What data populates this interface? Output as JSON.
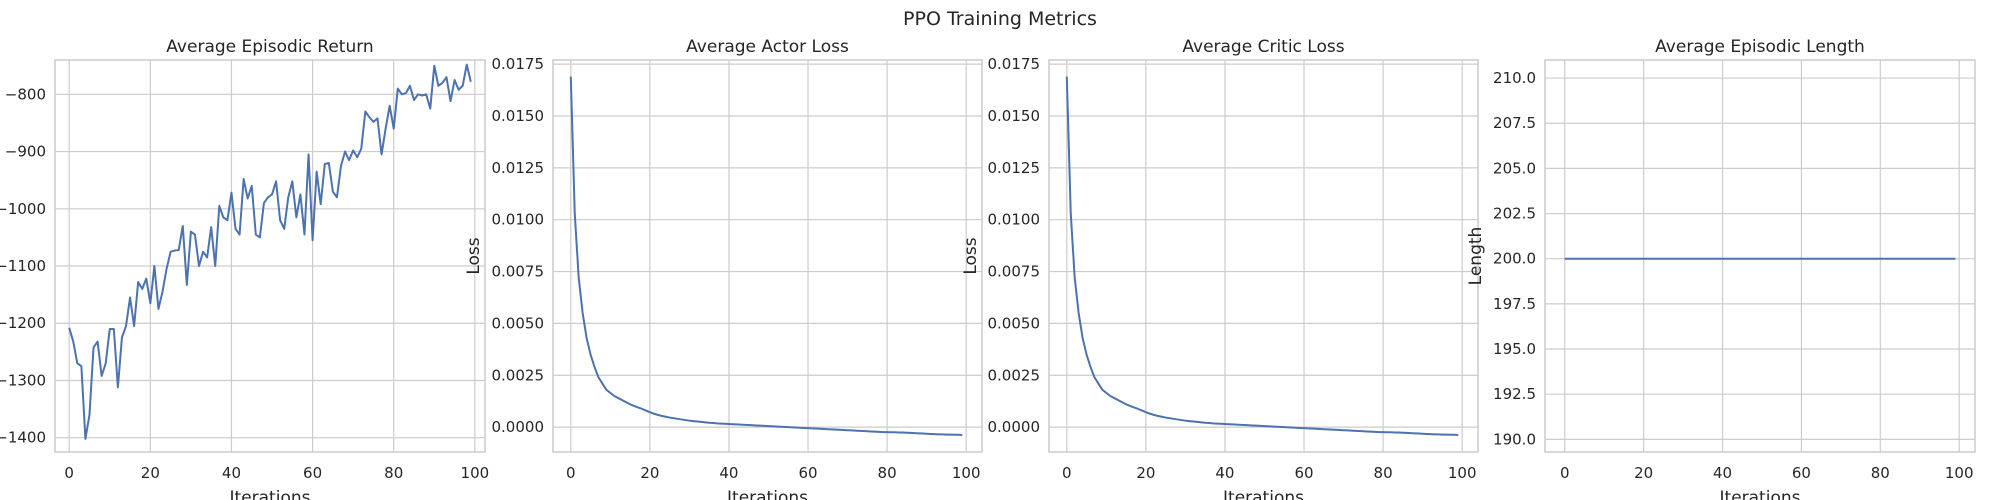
{
  "figure": {
    "title": "PPO Training Metrics"
  },
  "style": {
    "line_color": "#4c72b0",
    "grid_color": "#cccccc",
    "background": "#ffffff"
  },
  "chart_data": [
    {
      "type": "line",
      "title": "Average Episodic Return",
      "xlabel": "Iterations",
      "ylabel": "",
      "xlim": [
        -3.5,
        102.5
      ],
      "ylim": [
        -1425,
        -740
      ],
      "xticks": [
        0,
        20,
        40,
        60,
        80,
        100
      ],
      "yticks": [
        -1400,
        -1300,
        -1200,
        -1100,
        -1000,
        -900,
        -800
      ],
      "grid": true,
      "series": [
        {
          "values": [
            -1208,
            -1232,
            -1270,
            -1275,
            -1402,
            -1360,
            -1242,
            -1232,
            -1292,
            -1270,
            -1210,
            -1210,
            -1312,
            -1225,
            -1205,
            -1155,
            -1205,
            -1128,
            -1140,
            -1122,
            -1165,
            -1100,
            -1175,
            -1145,
            -1105,
            -1075,
            -1073,
            -1072,
            -1030,
            -1133,
            -1040,
            -1045,
            -1100,
            -1075,
            -1085,
            -1032,
            -1100,
            -995,
            -1015,
            -1020,
            -972,
            -1035,
            -1045,
            -948,
            -982,
            -960,
            -1045,
            -1050,
            -990,
            -980,
            -975,
            -952,
            -1020,
            -1035,
            -980,
            -952,
            -1015,
            -975,
            -1045,
            -905,
            -1055,
            -935,
            -992,
            -922,
            -920,
            -970,
            -980,
            -925,
            -900,
            -915,
            -898,
            -910,
            -895,
            -830,
            -840,
            -848,
            -842,
            -905,
            -860,
            -820,
            -860,
            -790,
            -800,
            -798,
            -785,
            -810,
            -800,
            -802,
            -800,
            -825,
            -750,
            -785,
            -780,
            -770,
            -812,
            -775,
            -792,
            -785,
            -748,
            -778
          ]
        }
      ]
    },
    {
      "type": "line",
      "title": "Average Actor Loss",
      "xlabel": "Iterations",
      "ylabel": "Loss",
      "xlim": [
        -4.5,
        104
      ],
      "ylim": [
        -0.0012,
        0.0177
      ],
      "xticks": [
        0,
        20,
        40,
        60,
        80,
        100
      ],
      "yticks": [
        0,
        0.0025,
        0.005,
        0.0075,
        0.01,
        0.0125,
        0.015,
        0.0175
      ],
      "ytick_labels": [
        "0.0000",
        "0.0025",
        "0.0050",
        "0.0075",
        "0.0100",
        "0.0125",
        "0.0150",
        "0.0175"
      ],
      "grid": true,
      "series": [
        {
          "values": [
            0.0169,
            0.0103,
            0.0072,
            0.0055,
            0.0043,
            0.0035,
            0.0029,
            0.0024,
            0.0021,
            0.0018,
            0.00165,
            0.0015,
            0.0014,
            0.0013,
            0.0012,
            0.0011,
            0.00102,
            0.00095,
            0.00088,
            0.0008,
            0.00072,
            0.00065,
            0.00059,
            0.00054,
            0.0005,
            0.00046,
            0.00043,
            0.0004,
            0.00037,
            0.00034,
            0.00031,
            0.00029,
            0.00027,
            0.00025,
            0.00023,
            0.00021,
            0.0002,
            0.00018,
            0.00017,
            0.00016,
            0.00015,
            0.00014,
            0.00013,
            0.00012,
            0.00011,
            0.0001,
            9e-05,
            8e-05,
            7e-05,
            6e-05,
            5e-05,
            4e-05,
            3e-05,
            2e-05,
            1e-05,
            0,
            -1e-05,
            -2e-05,
            -3e-05,
            -4e-05,
            -5e-05,
            -6e-05,
            -7e-05,
            -8e-05,
            -9e-05,
            -0.0001,
            -0.00011,
            -0.00012,
            -0.00013,
            -0.00014,
            -0.00015,
            -0.00016,
            -0.00017,
            -0.00018,
            -0.00019,
            -0.0002,
            -0.00021,
            -0.00022,
            -0.00023,
            -0.00024,
            -0.00024,
            -0.00025,
            -0.00025,
            -0.00026,
            -0.00026,
            -0.00027,
            -0.00028,
            -0.00029,
            -0.0003,
            -0.00031,
            -0.00032,
            -0.00033,
            -0.00034,
            -0.00035,
            -0.00035,
            -0.00036,
            -0.00036,
            -0.00037,
            -0.00037,
            -0.00038
          ]
        }
      ]
    },
    {
      "type": "line",
      "title": "Average Critic Loss",
      "xlabel": "Iterations",
      "ylabel": "Loss",
      "xlim": [
        -4.5,
        104
      ],
      "ylim": [
        -0.0012,
        0.0177
      ],
      "xticks": [
        0,
        20,
        40,
        60,
        80,
        100
      ],
      "yticks": [
        0,
        0.0025,
        0.005,
        0.0075,
        0.01,
        0.0125,
        0.015,
        0.0175
      ],
      "ytick_labels": [
        "0.0000",
        "0.0025",
        "0.0050",
        "0.0075",
        "0.0100",
        "0.0125",
        "0.0150",
        "0.0175"
      ],
      "grid": true,
      "series": [
        {
          "values": [
            0.0169,
            0.0103,
            0.0072,
            0.0055,
            0.0043,
            0.0035,
            0.0029,
            0.0024,
            0.0021,
            0.0018,
            0.00165,
            0.0015,
            0.0014,
            0.0013,
            0.0012,
            0.0011,
            0.00102,
            0.00095,
            0.00088,
            0.0008,
            0.00072,
            0.00065,
            0.00059,
            0.00054,
            0.0005,
            0.00046,
            0.00043,
            0.0004,
            0.00037,
            0.00034,
            0.00031,
            0.00029,
            0.00027,
            0.00025,
            0.00023,
            0.00021,
            0.0002,
            0.00018,
            0.00017,
            0.00016,
            0.00015,
            0.00014,
            0.00013,
            0.00012,
            0.00011,
            0.0001,
            9e-05,
            8e-05,
            7e-05,
            6e-05,
            5e-05,
            4e-05,
            3e-05,
            2e-05,
            1e-05,
            0,
            -1e-05,
            -2e-05,
            -3e-05,
            -4e-05,
            -5e-05,
            -6e-05,
            -7e-05,
            -8e-05,
            -9e-05,
            -0.0001,
            -0.00011,
            -0.00012,
            -0.00013,
            -0.00014,
            -0.00015,
            -0.00016,
            -0.00017,
            -0.00018,
            -0.00019,
            -0.0002,
            -0.00021,
            -0.00022,
            -0.00023,
            -0.00024,
            -0.00024,
            -0.00025,
            -0.00025,
            -0.00026,
            -0.00026,
            -0.00027,
            -0.00028,
            -0.00029,
            -0.0003,
            -0.00031,
            -0.00032,
            -0.00033,
            -0.00034,
            -0.00035,
            -0.00035,
            -0.00036,
            -0.00036,
            -0.00037,
            -0.00037,
            -0.00038
          ]
        }
      ]
    },
    {
      "type": "line",
      "title": "Average Episodic Length",
      "xlabel": "Iterations",
      "ylabel": "Length",
      "xlim": [
        -5,
        104
      ],
      "ylim": [
        189.3,
        211
      ],
      "xticks": [
        0,
        20,
        40,
        60,
        80,
        100
      ],
      "yticks": [
        190,
        192.5,
        195,
        197.5,
        200,
        202.5,
        205,
        207.5,
        210
      ],
      "ytick_labels": [
        "190.0",
        "192.5",
        "195.0",
        "197.5",
        "200.0",
        "202.5",
        "205.0",
        "207.5",
        "210.0"
      ],
      "grid": true,
      "series": [
        {
          "values": [
            200,
            200,
            200,
            200,
            200,
            200,
            200,
            200,
            200,
            200,
            200,
            200,
            200,
            200,
            200,
            200,
            200,
            200,
            200,
            200,
            200,
            200,
            200,
            200,
            200,
            200,
            200,
            200,
            200,
            200,
            200,
            200,
            200,
            200,
            200,
            200,
            200,
            200,
            200,
            200,
            200,
            200,
            200,
            200,
            200,
            200,
            200,
            200,
            200,
            200,
            200,
            200,
            200,
            200,
            200,
            200,
            200,
            200,
            200,
            200,
            200,
            200,
            200,
            200,
            200,
            200,
            200,
            200,
            200,
            200,
            200,
            200,
            200,
            200,
            200,
            200,
            200,
            200,
            200,
            200,
            200,
            200,
            200,
            200,
            200,
            200,
            200,
            200,
            200,
            200,
            200,
            200,
            200,
            200,
            200,
            200,
            200,
            200,
            200,
            200
          ]
        }
      ]
    }
  ]
}
